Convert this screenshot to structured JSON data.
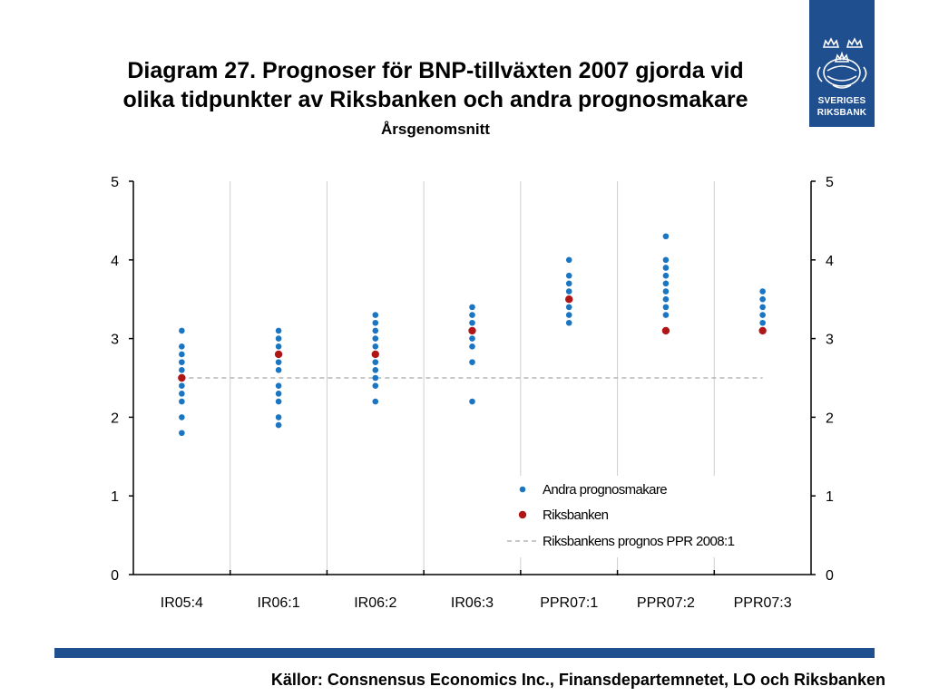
{
  "header": {
    "title_line1": "Diagram 27. Prognoser för BNP-tillväxten 2007 gjorda vid",
    "title_line2": "olika tidpunkter av Riksbanken och andra prognosmakare",
    "subtitle": "Årsgenomsnitt"
  },
  "logo": {
    "line1": "SVERIGES",
    "line2": "RIKSBANK",
    "icon": "riksbank-crest-icon"
  },
  "footer": {
    "source": "Källor: Consnensus Economics Inc., Finansdepartemnetet, LO och Riksbanken"
  },
  "colors": {
    "others": "#1a75c2",
    "riksbanken": "#b01616",
    "reference_line": "#b5b5b5",
    "brand": "#1f4f8f"
  },
  "chart_data": {
    "type": "scatter",
    "categories": [
      "IR05:4",
      "IR06:1",
      "IR06:2",
      "IR06:3",
      "PPR07:1",
      "PPR07:2",
      "PPR07:3"
    ],
    "ylim": [
      0,
      5
    ],
    "yticks": [
      0,
      1,
      2,
      3,
      4,
      5
    ],
    "grid": "vertical",
    "legend_placement": "bottom-right",
    "series": [
      {
        "name": "Andra prognosmakare",
        "color": "#1a75c2",
        "values": [
          [
            3.1,
            2.9,
            2.8,
            2.7,
            2.6,
            2.5,
            2.4,
            2.3,
            2.2,
            2.0,
            1.8
          ],
          [
            3.1,
            3.0,
            2.9,
            2.8,
            2.7,
            2.6,
            2.4,
            2.3,
            2.2,
            2.0,
            1.9
          ],
          [
            3.3,
            3.2,
            3.1,
            3.0,
            2.9,
            2.8,
            2.7,
            2.6,
            2.5,
            2.4,
            2.2
          ],
          [
            3.4,
            3.3,
            3.2,
            3.1,
            3.0,
            2.9,
            2.7,
            2.2
          ],
          [
            4.0,
            3.8,
            3.7,
            3.6,
            3.5,
            3.4,
            3.3,
            3.2
          ],
          [
            4.3,
            4.0,
            3.9,
            3.8,
            3.7,
            3.6,
            3.5,
            3.4,
            3.3
          ],
          [
            3.6,
            3.5,
            3.4,
            3.3,
            3.2
          ]
        ]
      },
      {
        "name": "Riksbanken",
        "color": "#b01616",
        "values": [
          2.5,
          2.8,
          2.8,
          3.1,
          3.5,
          3.1,
          3.1
        ]
      },
      {
        "name": "Riksbankens prognos PPR 2008:1",
        "color": "#b5b5b5",
        "style": "dashed",
        "value": 2.5
      }
    ]
  }
}
